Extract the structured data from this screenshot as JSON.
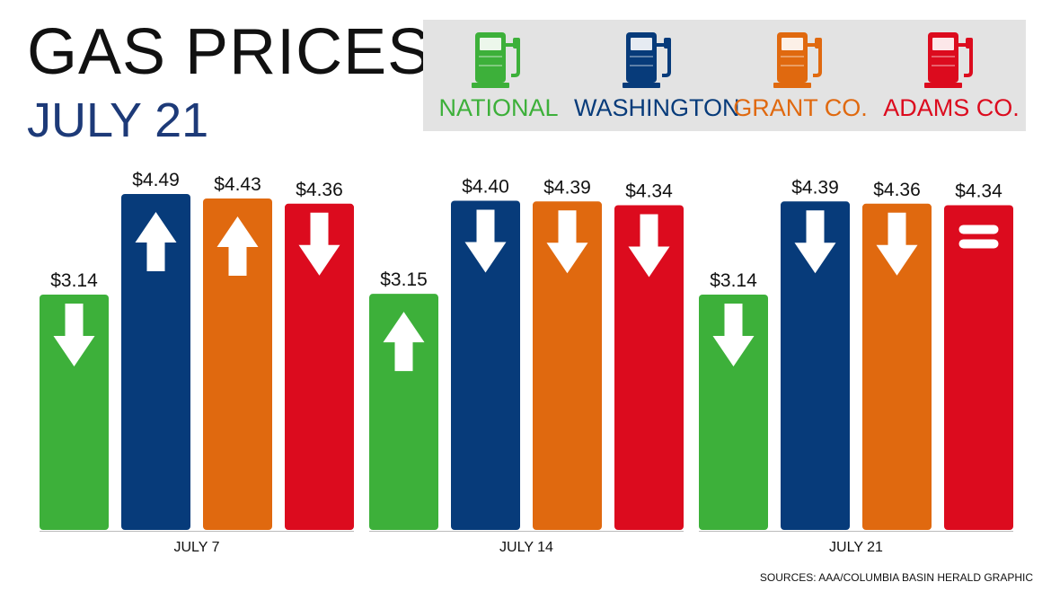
{
  "title": "GAS PRICES",
  "subtitle": "JULY 21",
  "legend": [
    {
      "label": "NATIONAL",
      "color": "#3db03a",
      "icon": "gas-pump-icon"
    },
    {
      "label": "WASHINGTON",
      "color": "#073b7a",
      "icon": "gas-pump-icon"
    },
    {
      "label": "GRANT CO.",
      "color": "#e0690f",
      "icon": "gas-pump-icon"
    },
    {
      "label": "ADAMS CO.",
      "color": "#dc0b1e",
      "icon": "gas-pump-icon"
    }
  ],
  "source": "SOURCES: AAA/COLUMBIA BASIN HERALD GRAPHIC",
  "chart_data": {
    "type": "bar",
    "categories": [
      "JULY 7",
      "JULY 14",
      "JULY 21"
    ],
    "series": [
      {
        "name": "NATIONAL",
        "color": "#3db03a",
        "values": [
          3.14,
          3.15,
          3.14
        ],
        "labels": [
          "$3.14",
          "$3.15",
          "$3.14"
        ],
        "trend": [
          "down",
          "up",
          "down"
        ]
      },
      {
        "name": "WASHINGTON",
        "color": "#073b7a",
        "values": [
          4.49,
          4.4,
          4.39
        ],
        "labels": [
          "$4.49",
          "$4.40",
          "$4.39"
        ],
        "trend": [
          "up",
          "down",
          "down"
        ]
      },
      {
        "name": "GRANT CO.",
        "color": "#e0690f",
        "values": [
          4.43,
          4.39,
          4.36
        ],
        "labels": [
          "$4.43",
          "$4.39",
          "$4.36"
        ],
        "trend": [
          "up",
          "down",
          "down"
        ]
      },
      {
        "name": "ADAMS CO.",
        "color": "#dc0b1e",
        "values": [
          4.36,
          4.34,
          4.34
        ],
        "labels": [
          "$4.36",
          "$4.34",
          "$4.34"
        ],
        "trend": [
          "down",
          "down",
          "equal"
        ]
      }
    ],
    "grid": false,
    "legend_position": "top-right"
  }
}
